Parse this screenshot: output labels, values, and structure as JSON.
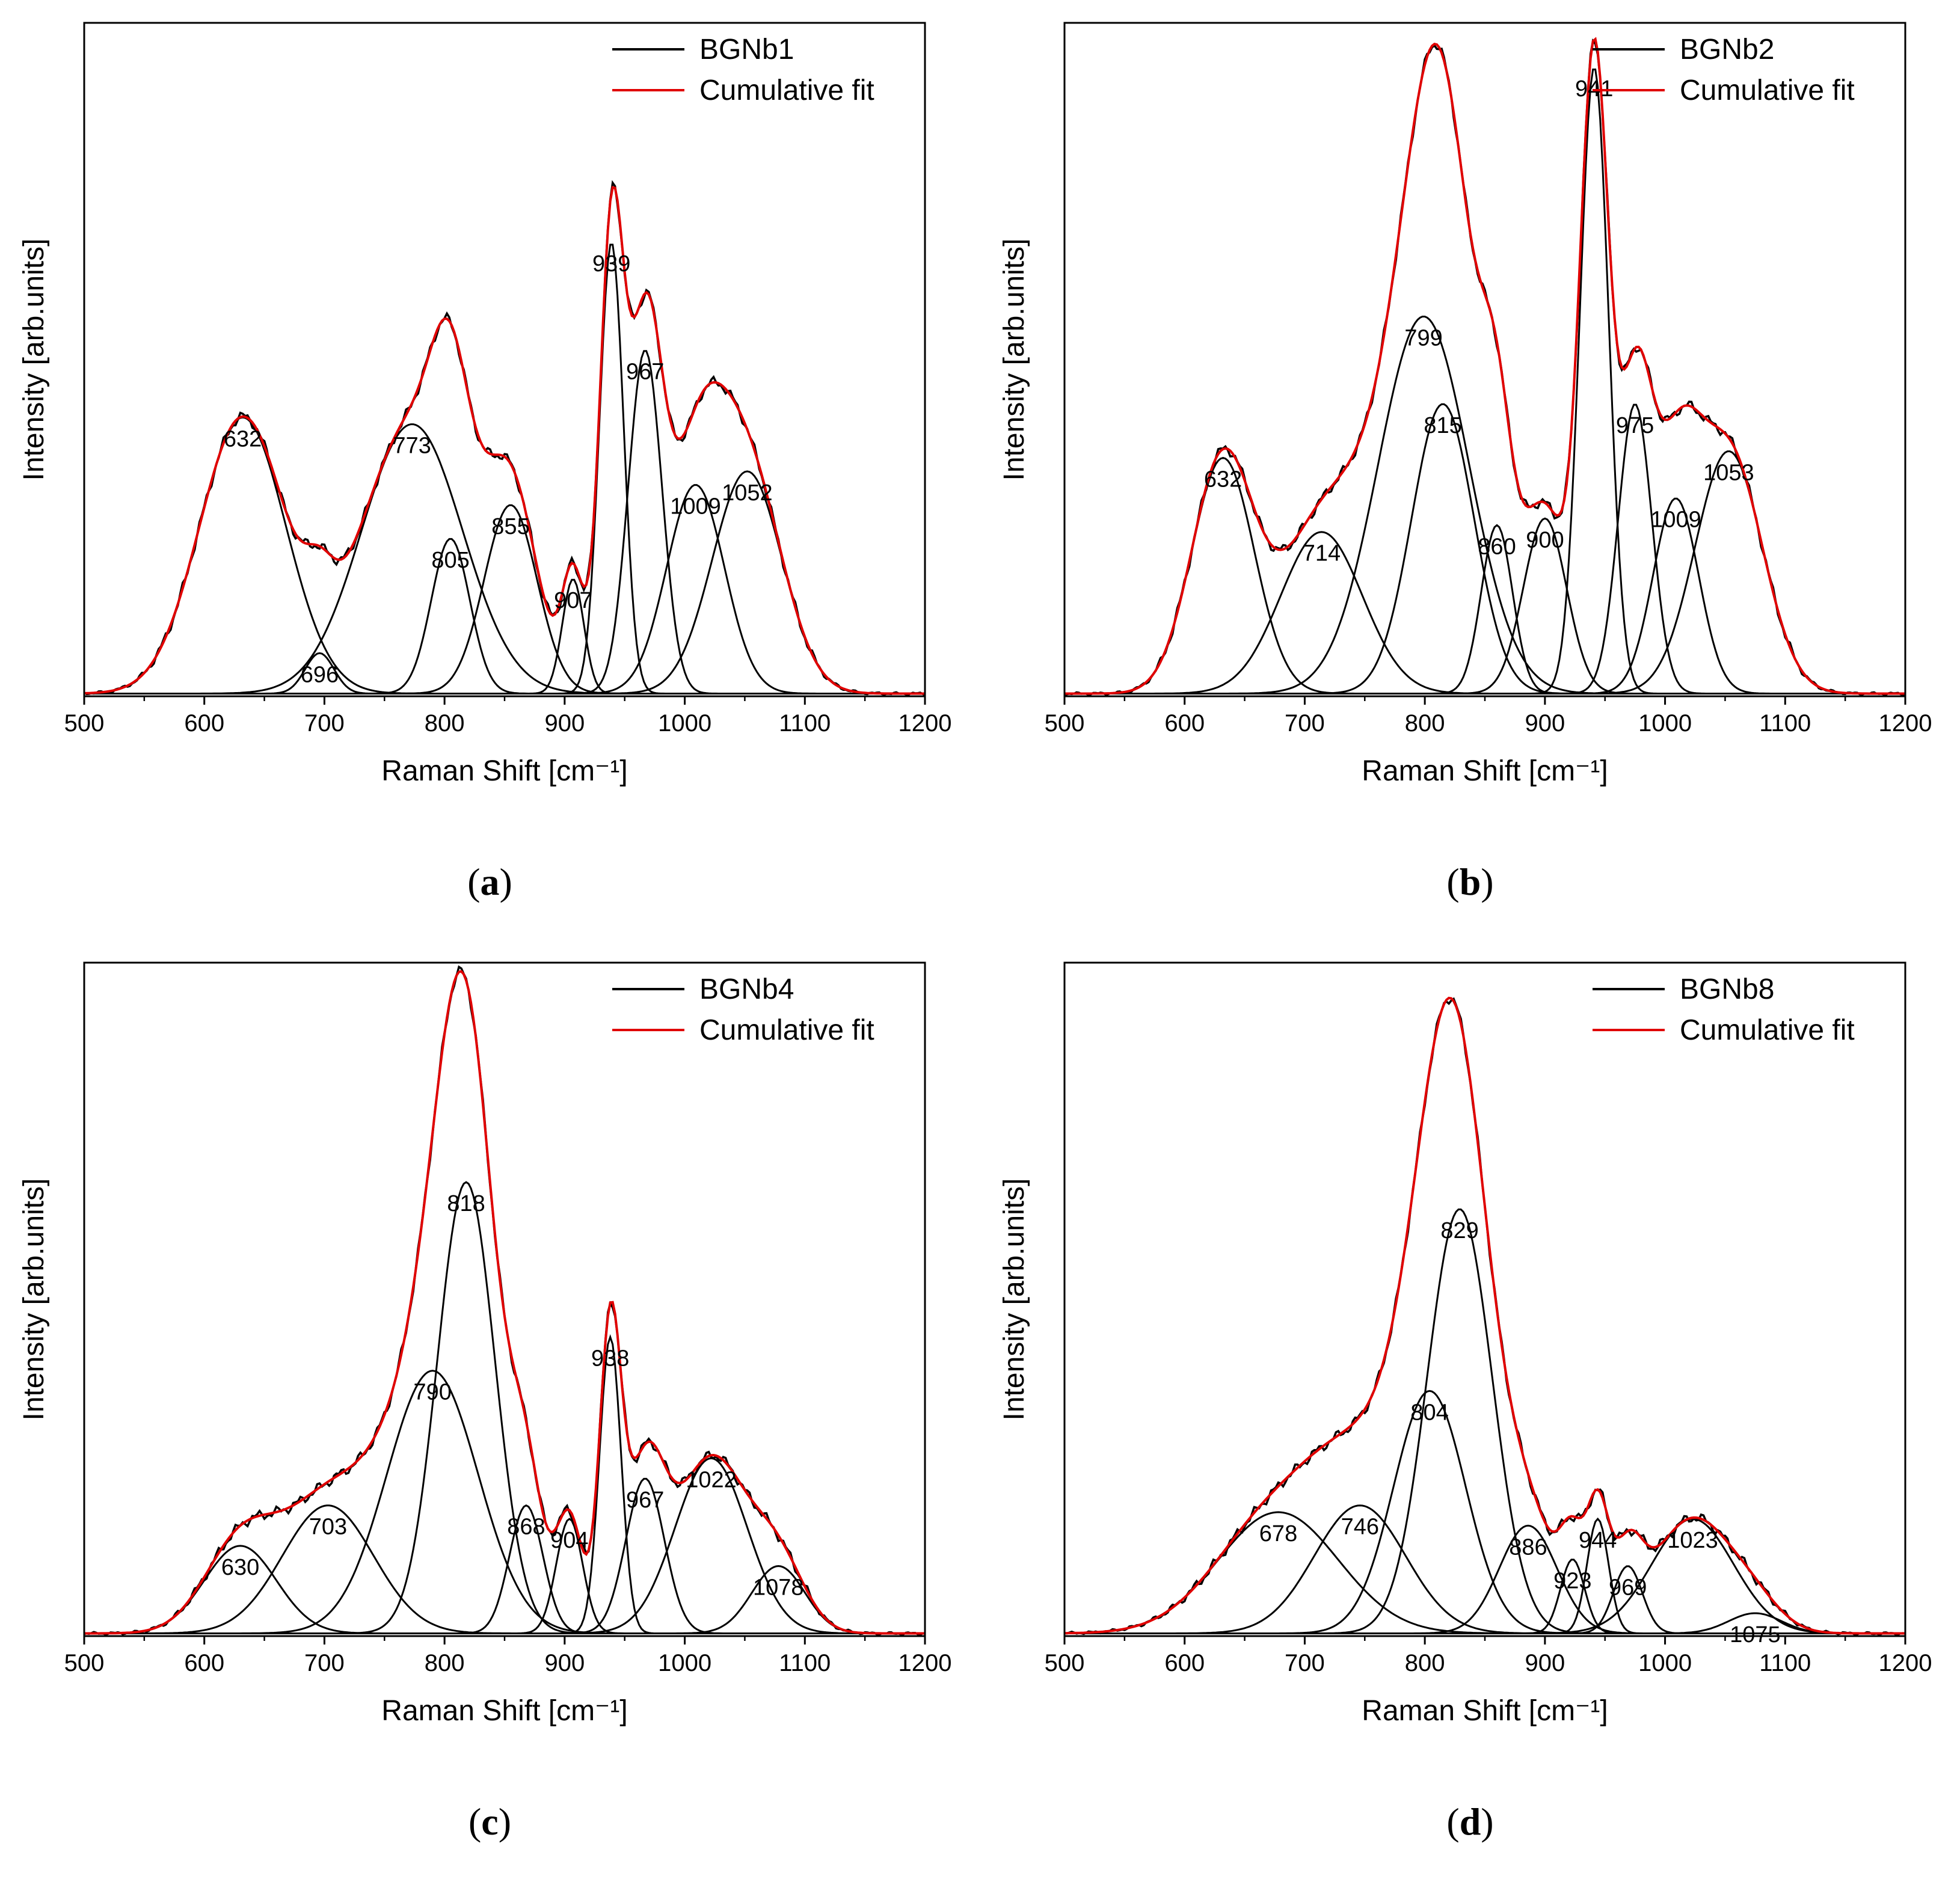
{
  "colors": {
    "sample": "#000000",
    "fit": "#e00000",
    "component": "#000000",
    "axis": "#000000"
  },
  "chart_data": [
    {
      "type": "line",
      "panel": "(a)",
      "panel_letter": "a",
      "xlabel": "Raman Shift [cm⁻¹]",
      "ylabel": "Intensity [arb.units]",
      "xlim": [
        500,
        1200
      ],
      "ylim": [
        0,
        100
      ],
      "xticks": [
        "500",
        "600",
        "700",
        "800",
        "900",
        "1000",
        "1100",
        "1200"
      ],
      "legend": {
        "position": "top-right",
        "entries": [
          "BGNb1",
          "Cumulative fit"
        ]
      },
      "sample_name": "BGNb1",
      "peaks": [
        {
          "center": 632,
          "amp": 41,
          "sigma": 36,
          "label": "632"
        },
        {
          "center": 696,
          "amp": 6,
          "sigma": 12,
          "label": "696"
        },
        {
          "center": 773,
          "amp": 40,
          "sigma": 42,
          "label": "773"
        },
        {
          "center": 805,
          "amp": 23,
          "sigma": 16,
          "label": "805"
        },
        {
          "center": 855,
          "amp": 28,
          "sigma": 22,
          "label": "855"
        },
        {
          "center": 907,
          "amp": 17,
          "sigma": 9,
          "label": "907"
        },
        {
          "center": 939,
          "amp": 67,
          "sigma": 10,
          "label": "939"
        },
        {
          "center": 967,
          "amp": 51,
          "sigma": 14,
          "label": "967"
        },
        {
          "center": 1009,
          "amp": 31,
          "sigma": 24,
          "label": "1009"
        },
        {
          "center": 1052,
          "amp": 33,
          "sigma": 29,
          "label": "1052"
        }
      ]
    },
    {
      "type": "line",
      "panel": "(b)",
      "panel_letter": "b",
      "xlabel": "Raman Shift [cm⁻¹]",
      "ylabel": "Intensity [arb.units]",
      "xlim": [
        500,
        1200
      ],
      "ylim": [
        0,
        100
      ],
      "xticks": [
        "500",
        "600",
        "700",
        "800",
        "900",
        "1000",
        "1100",
        "1200"
      ],
      "legend": {
        "position": "top-right",
        "entries": [
          "BGNb2",
          "Cumulative fit"
        ]
      },
      "sample_name": "BGNb2",
      "peaks": [
        {
          "center": 632,
          "amp": 35,
          "sigma": 26,
          "label": "632"
        },
        {
          "center": 714,
          "amp": 24,
          "sigma": 34,
          "label": "714"
        },
        {
          "center": 799,
          "amp": 56,
          "sigma": 38,
          "label": "799"
        },
        {
          "center": 815,
          "amp": 43,
          "sigma": 26,
          "label": "815"
        },
        {
          "center": 860,
          "amp": 25,
          "sigma": 13,
          "label": "860"
        },
        {
          "center": 900,
          "amp": 26,
          "sigma": 18,
          "label": "900"
        },
        {
          "center": 941,
          "amp": 93,
          "sigma": 12,
          "label": "941"
        },
        {
          "center": 975,
          "amp": 43,
          "sigma": 14,
          "label": "975"
        },
        {
          "center": 1009,
          "amp": 29,
          "sigma": 19,
          "label": "1009"
        },
        {
          "center": 1053,
          "amp": 36,
          "sigma": 28,
          "label": "1053"
        }
      ]
    },
    {
      "type": "line",
      "panel": "(c)",
      "panel_letter": "c",
      "xlabel": "Raman Shift [cm⁻¹]",
      "ylabel": "Intensity [arb.units]",
      "xlim": [
        500,
        1200
      ],
      "ylim": [
        0,
        100
      ],
      "xticks": [
        "500",
        "600",
        "700",
        "800",
        "900",
        "1000",
        "1100",
        "1200"
      ],
      "legend": {
        "position": "top-right",
        "entries": [
          "BGNb4",
          "Cumulative fit"
        ]
      },
      "sample_name": "BGNb4",
      "peaks": [
        {
          "center": 630,
          "amp": 13,
          "sigma": 30,
          "label": "630"
        },
        {
          "center": 703,
          "amp": 19,
          "sigma": 38,
          "label": "703"
        },
        {
          "center": 790,
          "amp": 39,
          "sigma": 38,
          "label": "790"
        },
        {
          "center": 818,
          "amp": 67,
          "sigma": 24,
          "label": "818"
        },
        {
          "center": 868,
          "amp": 19,
          "sigma": 14,
          "label": "868"
        },
        {
          "center": 904,
          "amp": 17,
          "sigma": 11,
          "label": "904"
        },
        {
          "center": 938,
          "amp": 44,
          "sigma": 9,
          "label": "938"
        },
        {
          "center": 967,
          "amp": 23,
          "sigma": 16,
          "label": "967"
        },
        {
          "center": 1022,
          "amp": 26,
          "sigma": 30,
          "label": "1022"
        },
        {
          "center": 1078,
          "amp": 10,
          "sigma": 22,
          "label": "1078"
        }
      ]
    },
    {
      "type": "line",
      "panel": "(d)",
      "panel_letter": "d",
      "xlabel": "Raman Shift [cm⁻¹]",
      "ylabel": "Intensity [arb.units]",
      "xlim": [
        500,
        1200
      ],
      "ylim": [
        0,
        100
      ],
      "xticks": [
        "500",
        "600",
        "700",
        "800",
        "900",
        "1000",
        "1100",
        "1200"
      ],
      "legend": {
        "position": "top-right",
        "entries": [
          "BGNb8",
          "Cumulative fit"
        ]
      },
      "sample_name": "BGNb8",
      "peaks": [
        {
          "center": 678,
          "amp": 18,
          "sigma": 50,
          "label": "678"
        },
        {
          "center": 746,
          "amp": 19,
          "sigma": 38,
          "label": "746"
        },
        {
          "center": 804,
          "amp": 36,
          "sigma": 30,
          "label": "804"
        },
        {
          "center": 829,
          "amp": 63,
          "sigma": 27,
          "label": "829"
        },
        {
          "center": 886,
          "amp": 16,
          "sigma": 24,
          "label": "886"
        },
        {
          "center": 923,
          "amp": 11,
          "sigma": 10,
          "label": "923"
        },
        {
          "center": 944,
          "amp": 17,
          "sigma": 9,
          "label": "944"
        },
        {
          "center": 969,
          "amp": 10,
          "sigma": 12,
          "label": "969"
        },
        {
          "center": 1023,
          "amp": 17,
          "sigma": 34,
          "label": "1023"
        },
        {
          "center": 1075,
          "amp": 3,
          "sigma": 22,
          "label": "1075"
        }
      ]
    }
  ]
}
